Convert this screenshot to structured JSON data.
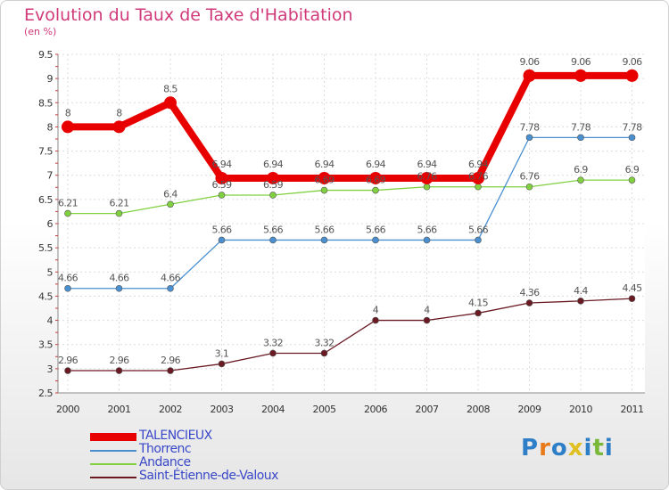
{
  "title": "Evolution du Taux de Taxe d'Habitation",
  "subtitle": "(en %)",
  "logo": [
    "P",
    "r",
    "o",
    "x",
    "i",
    "t",
    "i"
  ],
  "logo_colors": [
    "#2f7fc8",
    "#e87a1a",
    "#2f7fc8",
    "#e0c020",
    "#2f7fc8",
    "#7ab83a",
    "#2f7fc8"
  ],
  "chart_data": {
    "type": "line",
    "title": "Evolution du Taux de Taxe d'Habitation",
    "ylabel": "(en %)",
    "xlabel": "",
    "x": [
      "2000",
      "2001",
      "2002",
      "2003",
      "2004",
      "2005",
      "2006",
      "2007",
      "2008",
      "2009",
      "2010",
      "2011"
    ],
    "ylim": [
      2.5,
      9.5
    ],
    "yticks": [
      "2.5",
      "3",
      "3.5",
      "4",
      "4.5",
      "5",
      "5.5",
      "6",
      "6.5",
      "7",
      "7.5",
      "8",
      "8.5",
      "9",
      "9.5"
    ],
    "grid": true,
    "legend_position": "bottom-left",
    "series": [
      {
        "name": "TALENCIEUX",
        "color": "#e80000",
        "values": [
          8,
          8,
          8.5,
          6.94,
          6.94,
          6.94,
          6.94,
          6.94,
          6.94,
          9.06,
          9.06,
          9.06
        ],
        "labels": [
          "8",
          "8",
          "8.5",
          "6.94",
          "6.94",
          "6.94",
          "6.94",
          "6.94",
          "6.94",
          "9.06",
          "9.06",
          "9.06"
        ]
      },
      {
        "name": "Thorrenc",
        "color": "#4a90d0",
        "values": [
          4.66,
          4.66,
          4.66,
          5.66,
          5.66,
          5.66,
          5.66,
          5.66,
          5.66,
          7.78,
          7.78,
          7.78
        ],
        "labels": [
          "4.66",
          "4.66",
          "4.66",
          "5.66",
          "5.66",
          "5.66",
          "5.66",
          "5.66",
          "5.66",
          "7.78",
          "7.78",
          "7.78"
        ]
      },
      {
        "name": "Andance",
        "color": "#80d040",
        "values": [
          6.21,
          6.21,
          6.4,
          6.59,
          6.59,
          6.69,
          6.69,
          6.76,
          6.76,
          6.76,
          6.9,
          6.9
        ],
        "labels": [
          "6.21",
          "6.21",
          "6.4",
          "6.59",
          "6.59",
          "6.69",
          "6.69",
          "6.76",
          "6.76",
          "6.76",
          "6.9",
          "6.9"
        ]
      },
      {
        "name": "Saint-Étienne-de-Valoux",
        "color": "#6a1a22",
        "values": [
          2.96,
          2.96,
          2.96,
          3.1,
          3.32,
          3.32,
          4,
          4,
          4.15,
          4.36,
          4.4,
          4.45
        ],
        "labels": [
          "2.96",
          "2.96",
          "2.96",
          "3.1",
          "3.32",
          "3.32",
          "4",
          "4",
          "4.15",
          "4.36",
          "4.4",
          "4.45"
        ]
      }
    ]
  }
}
